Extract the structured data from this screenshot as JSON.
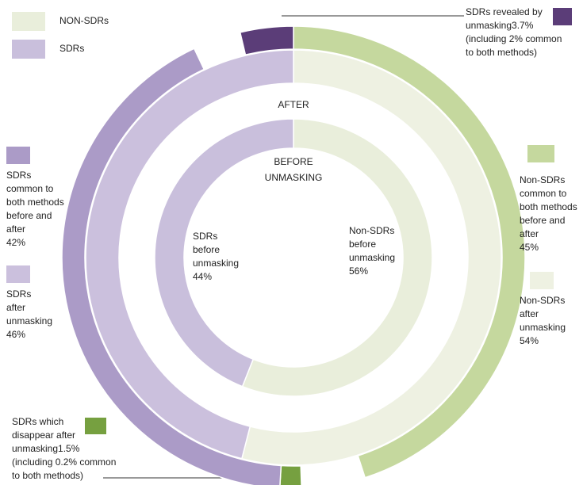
{
  "chart_data": {
    "type": "nested-donut",
    "legend": [
      {
        "name": "NON-SDRs",
        "color": "#e9eedb"
      },
      {
        "name": "SDRs",
        "color": "#c9bfdc"
      }
    ],
    "rings": [
      {
        "label": [
          "BEFORE",
          "UNMASKING"
        ],
        "segments": [
          {
            "lines": [
              "Non-SDRs",
              "before",
              "unmasking"
            ],
            "value": 56,
            "value_label": "56%",
            "color": "#e9eedb"
          },
          {
            "lines": [
              "SDRs",
              "before",
              "unmasking"
            ],
            "value": 44,
            "value_label": "44%",
            "color": "#c9bfdc"
          }
        ]
      },
      {
        "label": [
          "AFTER"
        ],
        "segments": [
          {
            "lines": [
              "Non-SDRs",
              "after",
              "unmasking"
            ],
            "value": 54,
            "value_label": "54%",
            "color": "#eef1e2"
          },
          {
            "lines": [
              "SDRs",
              "after",
              "unmasking"
            ],
            "value": 46,
            "value_label": "46%",
            "color": "#cbc0dd"
          }
        ]
      },
      {
        "segments": [
          {
            "lines": [
              "Non-SDRs",
              "common to",
              "both methods",
              "before and",
              "after"
            ],
            "value": 45,
            "value_label": "45%",
            "color": "#c5d89e"
          },
          {
            "lines": [
              "SDRs which",
              "disappear after",
              "unmasking"
            ],
            "value": 1.5,
            "value_label": "1.5%",
            "notes": [
              "(including 0.2% common",
              "to both methods)"
            ],
            "color": "#76a040"
          },
          {
            "lines": [
              "SDRs",
              "common to",
              "both methods",
              "before and",
              "after"
            ],
            "value": 42,
            "value_label": "42%",
            "color": "#ab9bc7"
          },
          {
            "lines": [
              "SDRs revealed by",
              "unmasking"
            ],
            "value": 3.7,
            "value_label": "3.7%",
            "notes": [
              "(including 2% common",
              "to both methods)"
            ],
            "color": "#5b3d78"
          }
        ]
      }
    ]
  }
}
